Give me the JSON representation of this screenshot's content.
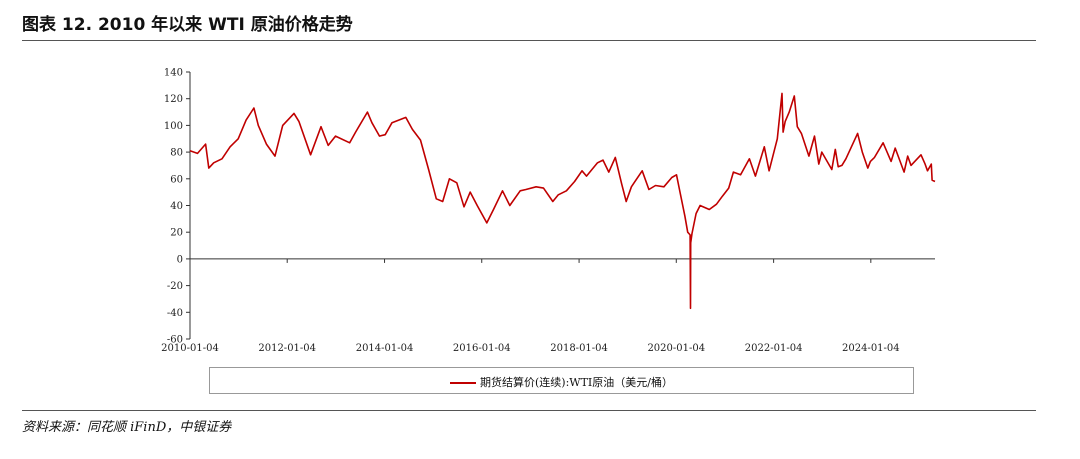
{
  "figure": {
    "title": "图表 12. 2010 年以来 WTI 原油价格走势",
    "source": "资料来源：同花顺 iFinD，中银证券"
  },
  "chart_data": {
    "type": "line",
    "title": "",
    "xlabel": "",
    "ylabel": "",
    "ylim": [
      -60,
      140
    ],
    "y_ticks": [
      140,
      120,
      100,
      80,
      60,
      40,
      20,
      0,
      -20,
      -40,
      -60
    ],
    "x_ticks": [
      "2010-01-04",
      "2012-01-04",
      "2014-01-04",
      "2016-01-04",
      "2018-01-04",
      "2020-01-04",
      "2022-01-04",
      "2024-01-04"
    ],
    "x_range": [
      "2010-01-04",
      "2025-04-30"
    ],
    "grid": false,
    "legend_position": "bottom",
    "series": [
      {
        "name": "期货结算价(连续):WTI原油（美元/桶）",
        "color": "#c00000",
        "x": [
          "2010-01-04",
          "2010-03-01",
          "2010-05-01",
          "2010-05-25",
          "2010-07-01",
          "2010-09-01",
          "2010-11-01",
          "2011-01-01",
          "2011-03-01",
          "2011-04-29",
          "2011-06-01",
          "2011-08-01",
          "2011-10-04",
          "2011-12-01",
          "2012-02-24",
          "2012-04-01",
          "2012-06-28",
          "2012-09-14",
          "2012-11-07",
          "2013-01-01",
          "2013-04-17",
          "2013-06-01",
          "2013-08-28",
          "2013-10-01",
          "2013-11-27",
          "2014-01-09",
          "2014-03-01",
          "2014-06-13",
          "2014-08-01",
          "2014-10-01",
          "2014-12-01",
          "2015-01-28",
          "2015-03-17",
          "2015-05-06",
          "2015-07-01",
          "2015-08-24",
          "2015-10-09",
          "2015-12-01",
          "2016-02-11",
          "2016-04-01",
          "2016-06-08",
          "2016-08-02",
          "2016-10-19",
          "2016-12-01",
          "2017-02-15",
          "2017-04-12",
          "2017-06-21",
          "2017-08-01",
          "2017-10-01",
          "2017-12-01",
          "2018-01-26",
          "2018-03-01",
          "2018-05-22",
          "2018-07-03",
          "2018-08-15",
          "2018-10-03",
          "2018-11-20",
          "2018-12-24",
          "2019-02-01",
          "2019-04-23",
          "2019-06-12",
          "2019-08-01",
          "2019-10-03",
          "2019-12-01",
          "2020-01-06",
          "2020-02-01",
          "2020-03-09",
          "2020-03-30",
          "2020-04-17",
          "2020-04-20",
          "2020-04-21",
          "2020-05-01",
          "2020-06-01",
          "2020-07-01",
          "2020-09-08",
          "2020-11-01",
          "2020-12-15",
          "2021-02-01",
          "2021-03-08",
          "2021-05-01",
          "2021-07-06",
          "2021-08-20",
          "2021-10-26",
          "2021-12-01",
          "2022-01-01",
          "2022-02-01",
          "2022-03-08",
          "2022-03-16",
          "2022-04-01",
          "2022-05-01",
          "2022-06-08",
          "2022-07-01",
          "2022-08-01",
          "2022-09-26",
          "2022-11-07",
          "2022-12-09",
          "2023-01-01",
          "2023-03-17",
          "2023-04-12",
          "2023-05-04",
          "2023-06-01",
          "2023-07-01",
          "2023-09-27",
          "2023-11-01",
          "2023-12-12",
          "2024-01-01",
          "2024-02-01",
          "2024-04-05",
          "2024-06-04",
          "2024-07-05",
          "2024-09-10",
          "2024-10-07",
          "2024-11-01",
          "2025-01-15",
          "2025-02-15",
          "2025-03-05",
          "2025-04-02",
          "2025-04-08",
          "2025-04-30"
        ],
        "y": [
          81,
          79,
          86,
          68,
          72,
          75,
          84,
          90,
          104,
          113,
          100,
          86,
          77,
          100,
          109,
          103,
          78,
          99,
          85,
          92,
          87,
          95,
          110,
          102,
          92,
          93,
          102,
          106,
          97,
          89,
          67,
          45,
          43,
          60,
          57,
          39,
          50,
          40,
          27,
          37,
          51,
          40,
          51,
          52,
          54,
          53,
          43,
          48,
          51,
          58,
          66,
          62,
          72,
          74,
          65,
          76,
          56,
          43,
          54,
          66,
          52,
          55,
          54,
          61,
          63,
          50,
          32,
          20,
          18,
          -37,
          12,
          19,
          34,
          40,
          37,
          41,
          47,
          53,
          65,
          63,
          75,
          62,
          84,
          66,
          78,
          90,
          124,
          95,
          103,
          110,
          122,
          99,
          94,
          77,
          92,
          71,
          80,
          67,
          82,
          69,
          70,
          75,
          94,
          80,
          68,
          73,
          76,
          87,
          73,
          83,
          65,
          77,
          70,
          78,
          71,
          66,
          71,
          59,
          58
        ]
      }
    ]
  }
}
